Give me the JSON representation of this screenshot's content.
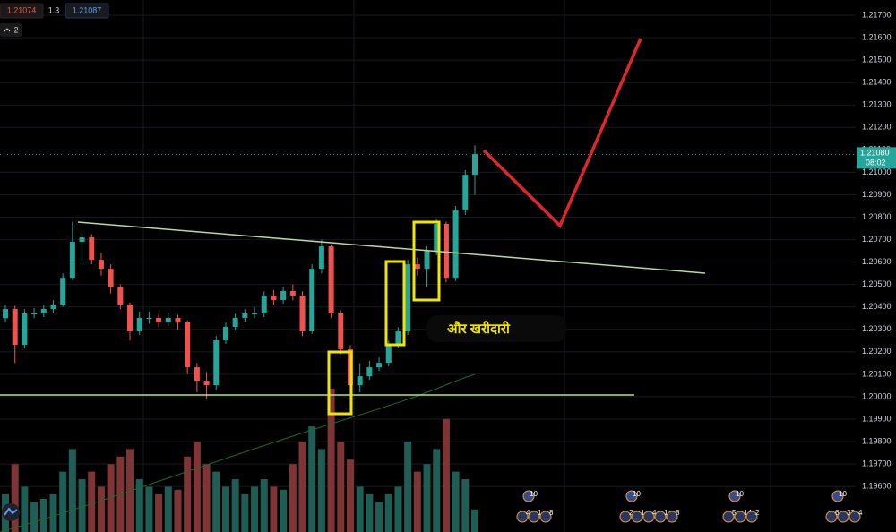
{
  "header": {
    "bid": "1.21074",
    "spread": "1.3",
    "ask": "1.21087",
    "indicators": "2"
  },
  "chart_data": {
    "type": "candlestick",
    "open": [
      1.2035,
      1.20391,
      1.20231,
      1.20371,
      1.20371,
      1.20391,
      1.20411,
      1.2053,
      1.2069,
      1.2071,
      1.2061,
      1.2057,
      1.2049,
      1.20411,
      1.20291,
      1.20351,
      1.20351,
      1.20331,
      1.20351,
      1.20331,
      1.20131,
      1.20071,
      1.20051,
      1.20251,
      1.20311,
      1.20351,
      1.20371,
      1.20371,
      1.20451,
      1.20431,
      1.20471,
      1.20451,
      1.20291,
      1.2057,
      1.2067,
      1.20371,
      1.20211,
      1.20051,
      1.20091,
      1.20131,
      1.20151,
      1.20231,
      1.20291,
      1.2059,
      1.2057,
      1.2065,
      1.2077,
      1.2053,
      1.2083,
      1.20989
    ],
    "high": [
      1.2041,
      1.20405,
      1.2039,
      1.20395,
      1.2041,
      1.2043,
      1.2055,
      1.2078,
      1.2074,
      1.20725,
      1.2064,
      1.2059,
      1.205,
      1.2042,
      1.2038,
      1.2038,
      1.2037,
      1.20375,
      1.20365,
      1.2034,
      1.2015,
      1.2011,
      1.2027,
      1.2033,
      1.2037,
      1.2039,
      1.204,
      1.2047,
      1.20475,
      1.2049,
      1.205,
      1.2047,
      1.2059,
      1.207,
      1.2068,
      1.20385,
      1.2023,
      1.2015,
      1.2016,
      1.20175,
      1.2025,
      1.2031,
      1.2061,
      1.2062,
      1.2067,
      1.2079,
      1.2078,
      1.2085,
      1.2101,
      1.2112
    ],
    "low": [
      1.2033,
      1.2015,
      1.20215,
      1.2035,
      1.20355,
      1.20375,
      1.204,
      1.2052,
      1.2059,
      1.2059,
      1.2054,
      1.2046,
      1.2039,
      1.2025,
      1.20275,
      1.20325,
      1.2031,
      1.20315,
      1.203,
      1.201,
      1.2002,
      1.1999,
      1.2003,
      1.20235,
      1.20295,
      1.20335,
      1.2035,
      1.20355,
      1.2041,
      1.20415,
      1.2043,
      1.2027,
      1.2028,
      1.2055,
      1.2035,
      1.2019,
      1.1999,
      1.2002,
      1.20075,
      1.20115,
      1.20135,
      1.20215,
      1.20275,
      1.2054,
      1.2049,
      1.2063,
      1.2051,
      1.20515,
      1.2081,
      1.209
    ],
    "close": [
      1.20391,
      1.20231,
      1.20371,
      1.20371,
      1.20391,
      1.20411,
      1.2053,
      1.2069,
      1.2071,
      1.2061,
      1.2057,
      1.2049,
      1.20411,
      1.20291,
      1.20351,
      1.20351,
      1.20331,
      1.20351,
      1.20331,
      1.20131,
      1.20071,
      1.20051,
      1.20251,
      1.20311,
      1.20351,
      1.20371,
      1.20371,
      1.20451,
      1.20431,
      1.20471,
      1.20451,
      1.20291,
      1.2057,
      1.2067,
      1.20371,
      1.20211,
      1.20051,
      1.20091,
      1.20131,
      1.20151,
      1.20231,
      1.20291,
      1.2059,
      1.2057,
      1.2065,
      1.2077,
      1.2053,
      1.2083,
      1.20989,
      1.21081
    ],
    "volume": [
      25,
      45,
      30,
      20,
      22,
      25,
      40,
      55,
      35,
      40,
      30,
      45,
      50,
      55,
      35,
      30,
      25,
      30,
      28,
      50,
      60,
      45,
      40,
      30,
      35,
      25,
      30,
      35,
      30,
      28,
      45,
      60,
      70,
      55,
      95,
      60,
      48,
      30,
      25,
      20,
      25,
      30,
      60,
      40,
      45,
      55,
      75,
      40,
      35,
      15
    ],
    "up_color": "#26a69a",
    "down_color": "#ef5350",
    "volume_up_color": "#1e5e55",
    "volume_down_color": "#7f3535",
    "ylim": [
      1.19397,
      1.21768
    ],
    "yticks": [
      {
        "value": 1.217,
        "label": "1.21700"
      },
      {
        "value": 1.216,
        "label": "1.21600"
      },
      {
        "value": 1.215,
        "label": "1.21500"
      },
      {
        "value": 1.214,
        "label": "1.21400"
      },
      {
        "value": 1.213,
        "label": "1.21300"
      },
      {
        "value": 1.212,
        "label": "1.21200"
      },
      {
        "value": 1.211,
        "label": "1.21100"
      },
      {
        "value": 1.21,
        "label": "1.21000"
      },
      {
        "value": 1.209,
        "label": "1.20900"
      },
      {
        "value": 1.208,
        "label": "1.20800"
      },
      {
        "value": 1.207,
        "label": "1.20700"
      },
      {
        "value": 1.206,
        "label": "1.20600"
      },
      {
        "value": 1.205,
        "label": "1.20500"
      },
      {
        "value": 1.204,
        "label": "1.20400"
      },
      {
        "value": 1.203,
        "label": "1.20300"
      },
      {
        "value": 1.202,
        "label": "1.20200"
      },
      {
        "value": 1.201,
        "label": "1.20100"
      },
      {
        "value": 1.2,
        "label": "1.20000"
      },
      {
        "value": 1.199,
        "label": "1.19900"
      },
      {
        "value": 1.198,
        "label": "1.19800"
      },
      {
        "value": 1.197,
        "label": "1.19700"
      },
      {
        "value": 1.196,
        "label": "1.19600"
      }
    ],
    "grid": true,
    "last_price": {
      "value": 1.2108,
      "label": "1.21080"
    },
    "countdown": "08:02",
    "annotation": "और खरीदारी"
  },
  "events": [
    {
      "count": "10",
      "details": [
        "4",
        "1",
        "8"
      ]
    },
    {
      "count": "10",
      "details": [
        "2",
        "1",
        "4",
        "1",
        "8"
      ]
    },
    {
      "count": "10",
      "details": [
        "5",
        "14",
        "2"
      ]
    },
    {
      "count": "10",
      "details": [
        "6",
        "33",
        "4"
      ]
    }
  ]
}
